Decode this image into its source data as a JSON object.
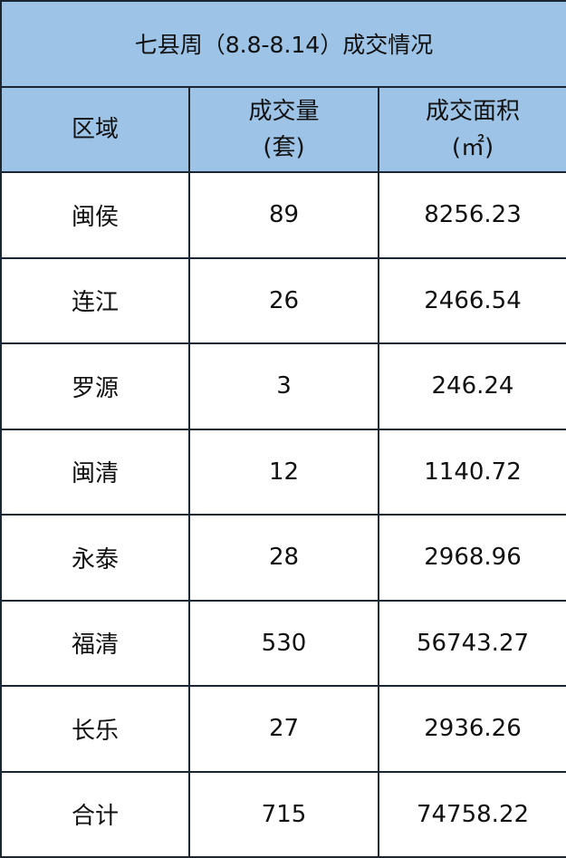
{
  "title": "七县周（8.8-8.14）成交情况",
  "headers": {
    "region": "区域",
    "volume_line1": "成交量",
    "volume_line2": "(套)",
    "area_line1": "成交面积",
    "area_line2": "(㎡)"
  },
  "rows": [
    {
      "region": "闽侯",
      "volume": "89",
      "area": "8256.23"
    },
    {
      "region": "连江",
      "volume": "26",
      "area": "2466.54"
    },
    {
      "region": "罗源",
      "volume": "3",
      "area": "246.24"
    },
    {
      "region": "闽清",
      "volume": "12",
      "area": "1140.72"
    },
    {
      "region": "永泰",
      "volume": "28",
      "area": "2968.96"
    },
    {
      "region": "福清",
      "volume": "530",
      "area": "56743.27"
    },
    {
      "region": "长乐",
      "volume": "27",
      "area": "2936.26"
    },
    {
      "region": "合计",
      "volume": "715",
      "area": "74758.22"
    }
  ],
  "colors": {
    "header_bg": "#9dc3e6",
    "border": "#1b2633"
  }
}
